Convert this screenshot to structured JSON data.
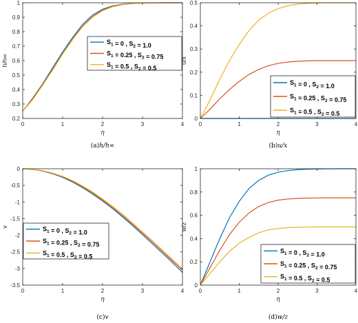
{
  "chart_data": [
    {
      "type": "line",
      "ylabel": "h/h∞",
      "xlabel": "η",
      "caption": "(a)h/h∞",
      "xlim": [
        0,
        4
      ],
      "ylim": [
        0.2,
        1
      ],
      "xticks": [
        "0",
        "1",
        "2",
        "3",
        "4"
      ],
      "yticks": [
        "0.2",
        "0.3",
        "0.4",
        "0.5",
        "0.6",
        "0.7",
        "0.8",
        "0.9",
        "1"
      ],
      "legend_position": "right-middle",
      "series": [
        {
          "name": "S1 = 0 , S2 = 1.0",
          "color": "#0072BD",
          "x": [
            0,
            0.25,
            0.5,
            0.75,
            1,
            1.25,
            1.5,
            1.75,
            2,
            2.25,
            2.5,
            2.75,
            3,
            3.25,
            3.5,
            3.75,
            4
          ],
          "y": [
            0.25,
            0.34,
            0.44,
            0.55,
            0.66,
            0.76,
            0.85,
            0.915,
            0.955,
            0.978,
            0.99,
            0.996,
            0.998,
            0.999,
            1,
            1,
            1
          ]
        },
        {
          "name": "S1 = 0.25 , S2 = 0.75",
          "color": "#D95319",
          "x": [
            0,
            0.25,
            0.5,
            0.75,
            1,
            1.25,
            1.5,
            1.75,
            2,
            2.25,
            2.5,
            2.75,
            3,
            3.25,
            3.5,
            3.75,
            4
          ],
          "y": [
            0.25,
            0.335,
            0.435,
            0.54,
            0.65,
            0.75,
            0.84,
            0.905,
            0.95,
            0.975,
            0.988,
            0.995,
            0.998,
            0.999,
            1,
            1,
            1
          ]
        },
        {
          "name": "S1 = 0.5 , S2 = 0.5",
          "color": "#EDB120",
          "x": [
            0,
            0.25,
            0.5,
            0.75,
            1,
            1.25,
            1.5,
            1.75,
            2,
            2.25,
            2.5,
            2.75,
            3,
            3.25,
            3.5,
            3.75,
            4
          ],
          "y": [
            0.25,
            0.33,
            0.43,
            0.535,
            0.645,
            0.745,
            0.835,
            0.9,
            0.945,
            0.972,
            0.987,
            0.994,
            0.997,
            0.999,
            1,
            1,
            1
          ]
        }
      ]
    },
    {
      "type": "line",
      "ylabel": "u/x",
      "xlabel": "η",
      "caption": "(b)u/x",
      "xlim": [
        0,
        4
      ],
      "ylim": [
        0,
        0.5
      ],
      "xticks": [
        "0",
        "1",
        "2",
        "3",
        "4"
      ],
      "yticks": [
        "0",
        "0.1",
        "0.2",
        "0.3",
        "0.4",
        "0.5"
      ],
      "legend_position": "bottom-right",
      "series": [
        {
          "name": "S1 = 0 , S2 = 1.0",
          "color": "#0072BD",
          "x": [
            0,
            0.25,
            0.5,
            0.75,
            1,
            1.25,
            1.5,
            1.75,
            2,
            2.25,
            2.5,
            2.75,
            3,
            3.25,
            3.5,
            3.75,
            4
          ],
          "y": [
            0,
            0,
            0,
            0,
            0,
            0,
            0,
            0,
            0,
            0,
            0,
            0,
            0,
            0,
            0,
            0,
            0
          ]
        },
        {
          "name": "S1 = 0.25 , S2 = 0.75",
          "color": "#D95319",
          "x": [
            0,
            0.25,
            0.5,
            0.75,
            1,
            1.25,
            1.5,
            1.75,
            2,
            2.25,
            2.5,
            2.75,
            3,
            3.25,
            3.5,
            3.75,
            4
          ],
          "y": [
            0,
            0.04,
            0.085,
            0.125,
            0.16,
            0.19,
            0.212,
            0.228,
            0.238,
            0.244,
            0.247,
            0.249,
            0.25,
            0.25,
            0.25,
            0.25,
            0.25
          ]
        },
        {
          "name": "S1 = 0.5 , S2 = 0.5",
          "color": "#EDB120",
          "x": [
            0,
            0.25,
            0.5,
            0.75,
            1,
            1.25,
            1.5,
            1.75,
            2,
            2.25,
            2.5,
            2.75,
            3,
            3.25,
            3.5,
            3.75,
            4
          ],
          "y": [
            0,
            0.08,
            0.17,
            0.25,
            0.32,
            0.38,
            0.425,
            0.455,
            0.475,
            0.487,
            0.494,
            0.497,
            0.499,
            0.5,
            0.5,
            0.5,
            0.5
          ]
        }
      ]
    },
    {
      "type": "line",
      "ylabel": "v",
      "xlabel": "η",
      "caption": "(c)v",
      "xlim": [
        0,
        4
      ],
      "ylim": [
        -3.5,
        0
      ],
      "xticks": [
        "0",
        "1",
        "2",
        "3",
        "4"
      ],
      "yticks": [
        "-3.5",
        "-3",
        "-2.5",
        "-2",
        "-1.5",
        "-1",
        "-0.5",
        "0"
      ],
      "legend_position": "left-middle",
      "series": [
        {
          "name": "S1 = 0 , S2 = 1.0",
          "color": "#0072BD",
          "x": [
            0,
            0.25,
            0.5,
            0.75,
            1,
            1.25,
            1.5,
            1.75,
            2,
            2.25,
            2.5,
            2.75,
            3,
            3.25,
            3.5,
            3.75,
            4
          ],
          "y": [
            0,
            -0.02,
            -0.07,
            -0.15,
            -0.26,
            -0.4,
            -0.57,
            -0.76,
            -0.97,
            -1.2,
            -1.45,
            -1.71,
            -1.98,
            -2.26,
            -2.54,
            -2.82,
            -3.12
          ]
        },
        {
          "name": "S1 = 0.25 , S2 = 0.75",
          "color": "#D95319",
          "x": [
            0,
            0.25,
            0.5,
            0.75,
            1,
            1.25,
            1.5,
            1.75,
            2,
            2.25,
            2.5,
            2.75,
            3,
            3.25,
            3.5,
            3.75,
            4
          ],
          "y": [
            0,
            -0.02,
            -0.065,
            -0.14,
            -0.245,
            -0.38,
            -0.545,
            -0.73,
            -0.94,
            -1.165,
            -1.41,
            -1.67,
            -1.94,
            -2.21,
            -2.49,
            -2.77,
            -3.05
          ]
        },
        {
          "name": "S1 = 0.5 , S2 = 0.5",
          "color": "#EDB120",
          "x": [
            0,
            0.25,
            0.5,
            0.75,
            1,
            1.25,
            1.5,
            1.75,
            2,
            2.25,
            2.5,
            2.75,
            3,
            3.25,
            3.5,
            3.75,
            4
          ],
          "y": [
            0,
            -0.018,
            -0.06,
            -0.13,
            -0.23,
            -0.36,
            -0.52,
            -0.7,
            -0.91,
            -1.13,
            -1.37,
            -1.63,
            -1.9,
            -2.17,
            -2.45,
            -2.73,
            -3.01
          ]
        }
      ]
    },
    {
      "type": "line",
      "ylabel": "w/z",
      "xlabel": "η",
      "caption": "(d)w/z",
      "xlim": [
        0,
        4
      ],
      "ylim": [
        0,
        1
      ],
      "xticks": [
        "0",
        "1",
        "2",
        "3",
        "4"
      ],
      "yticks": [
        "0",
        "0.2",
        "0.4",
        "0.6",
        "0.8",
        "1"
      ],
      "legend_position": "bottom-right",
      "series": [
        {
          "name": "S1 = 0 , S2 = 1.0",
          "color": "#0072BD",
          "x": [
            0,
            0.25,
            0.5,
            0.75,
            1,
            1.25,
            1.5,
            1.75,
            2,
            2.25,
            2.5,
            2.75,
            3,
            3.25,
            3.5,
            3.75,
            4
          ],
          "y": [
            0,
            0.2,
            0.4,
            0.58,
            0.72,
            0.83,
            0.9,
            0.945,
            0.97,
            0.984,
            0.992,
            0.996,
            0.998,
            0.999,
            1,
            1,
            1
          ]
        },
        {
          "name": "S1 = 0.25 , S2 = 0.75",
          "color": "#D95319",
          "x": [
            0,
            0.25,
            0.5,
            0.75,
            1,
            1.25,
            1.5,
            1.75,
            2,
            2.25,
            2.5,
            2.75,
            3,
            3.25,
            3.5,
            3.75,
            4
          ],
          "y": [
            0,
            0.15,
            0.3,
            0.435,
            0.54,
            0.62,
            0.675,
            0.71,
            0.73,
            0.74,
            0.745,
            0.748,
            0.749,
            0.75,
            0.75,
            0.75,
            0.75
          ]
        },
        {
          "name": "S1 = 0.5 , S2 = 0.5",
          "color": "#EDB120",
          "x": [
            0,
            0.25,
            0.5,
            0.75,
            1,
            1.25,
            1.5,
            1.75,
            2,
            2.25,
            2.5,
            2.75,
            3,
            3.25,
            3.5,
            3.75,
            4
          ],
          "y": [
            0,
            0.1,
            0.2,
            0.29,
            0.36,
            0.41,
            0.45,
            0.475,
            0.487,
            0.494,
            0.497,
            0.499,
            0.5,
            0.5,
            0.5,
            0.5,
            0.5
          ]
        }
      ]
    }
  ]
}
